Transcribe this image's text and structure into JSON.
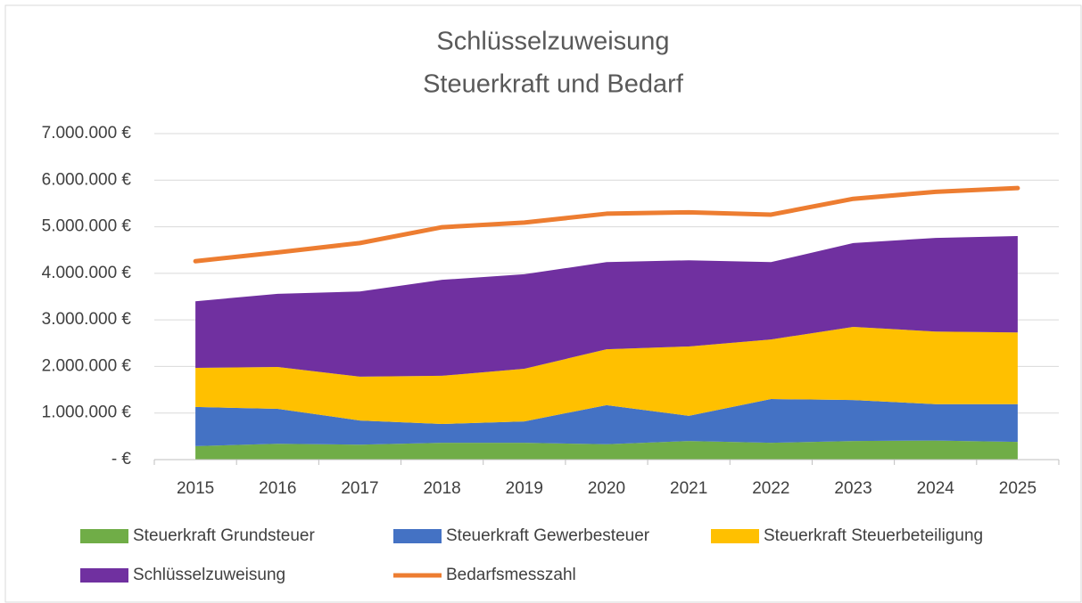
{
  "chart_data": {
    "type": "stacked_area_line",
    "title": "Schlüsselzuweisung",
    "subtitle": "Steuerkraft und Bedarf",
    "categories": [
      "2015",
      "2016",
      "2017",
      "2018",
      "2019",
      "2020",
      "2021",
      "2022",
      "2023",
      "2024",
      "2025"
    ],
    "series": [
      {
        "name": "Steuerkraft Grundsteuer",
        "color": "#70ad47",
        "type": "area",
        "values": [
          290000,
          340000,
          320000,
          360000,
          360000,
          330000,
          400000,
          360000,
          400000,
          410000,
          380000
        ]
      },
      {
        "name": "Steuerkraft Gewerbesteuer",
        "color": "#4472c4",
        "type": "area",
        "values": [
          840000,
          750000,
          520000,
          405000,
          460000,
          840000,
          540000,
          940000,
          880000,
          780000,
          810000
        ]
      },
      {
        "name": "Steuerkraft Steuerbeteiligung",
        "color": "#ffc000",
        "type": "area",
        "values": [
          840000,
          900000,
          940000,
          1035000,
          1130000,
          1200000,
          1490000,
          1280000,
          1570000,
          1560000,
          1540000
        ]
      },
      {
        "name": "Schlüsselzuweisung",
        "color": "#7030a0",
        "type": "area",
        "values": [
          1430000,
          1570000,
          1830000,
          2060000,
          2030000,
          1870000,
          1850000,
          1660000,
          1800000,
          2010000,
          2070000
        ]
      },
      {
        "name": "Bedarfsmesszahl",
        "color": "#ed7d31",
        "type": "line",
        "values": [
          4260000,
          4450000,
          4650000,
          4990000,
          5090000,
          5280000,
          5310000,
          5260000,
          5600000,
          5750000,
          5830000
        ]
      }
    ],
    "ylim": [
      0,
      7000000
    ],
    "yticks": [
      {
        "value": 0,
        "label": "-  €"
      },
      {
        "value": 1000000,
        "label": "1.000.000 €"
      },
      {
        "value": 2000000,
        "label": "2.000.000 €"
      },
      {
        "value": 3000000,
        "label": "3.000.000 €"
      },
      {
        "value": 4000000,
        "label": "4.000.000 €"
      },
      {
        "value": 5000000,
        "label": "5.000.000 €"
      },
      {
        "value": 6000000,
        "label": "6.000.000 €"
      },
      {
        "value": 7000000,
        "label": "7.000.000 €"
      }
    ],
    "grid": true,
    "legend": "bottom"
  }
}
